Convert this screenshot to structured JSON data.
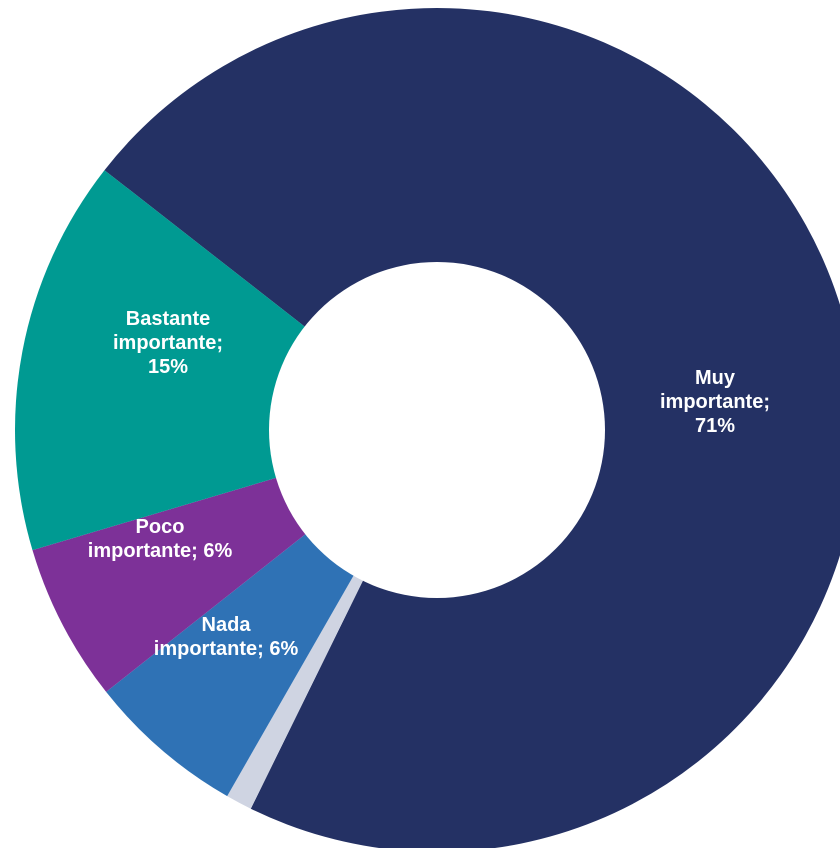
{
  "chart_data": {
    "type": "pie",
    "variant": "donut",
    "start_angle_deg": 218,
    "slices": [
      {
        "name": "Muy importante",
        "value": 71,
        "color": "#243164",
        "label_lines": [
          "Muy",
          "importante;",
          "71%"
        ],
        "label_color": "#ffffff"
      },
      {
        "name": "(sin etiqueta)",
        "value": 1,
        "color": "#cfd4e2",
        "label_lines": [],
        "label_color": "#ffffff"
      },
      {
        "name": "Nada importante",
        "value": 6,
        "color": "#2f72b5",
        "label_lines": [
          "Nada",
          "importante; 6%"
        ],
        "label_color": "#ffffff"
      },
      {
        "name": "Poco importante",
        "value": 6,
        "color": "#7d3198",
        "label_lines": [
          "Poco",
          "importante; 6%"
        ],
        "label_color": "#ffffff"
      },
      {
        "name": "Bastante importante",
        "value": 15,
        "color": "#009a92",
        "label_lines": [
          "Bastante",
          "importante;",
          "15%"
        ],
        "label_color": "#ffffff"
      }
    ]
  }
}
